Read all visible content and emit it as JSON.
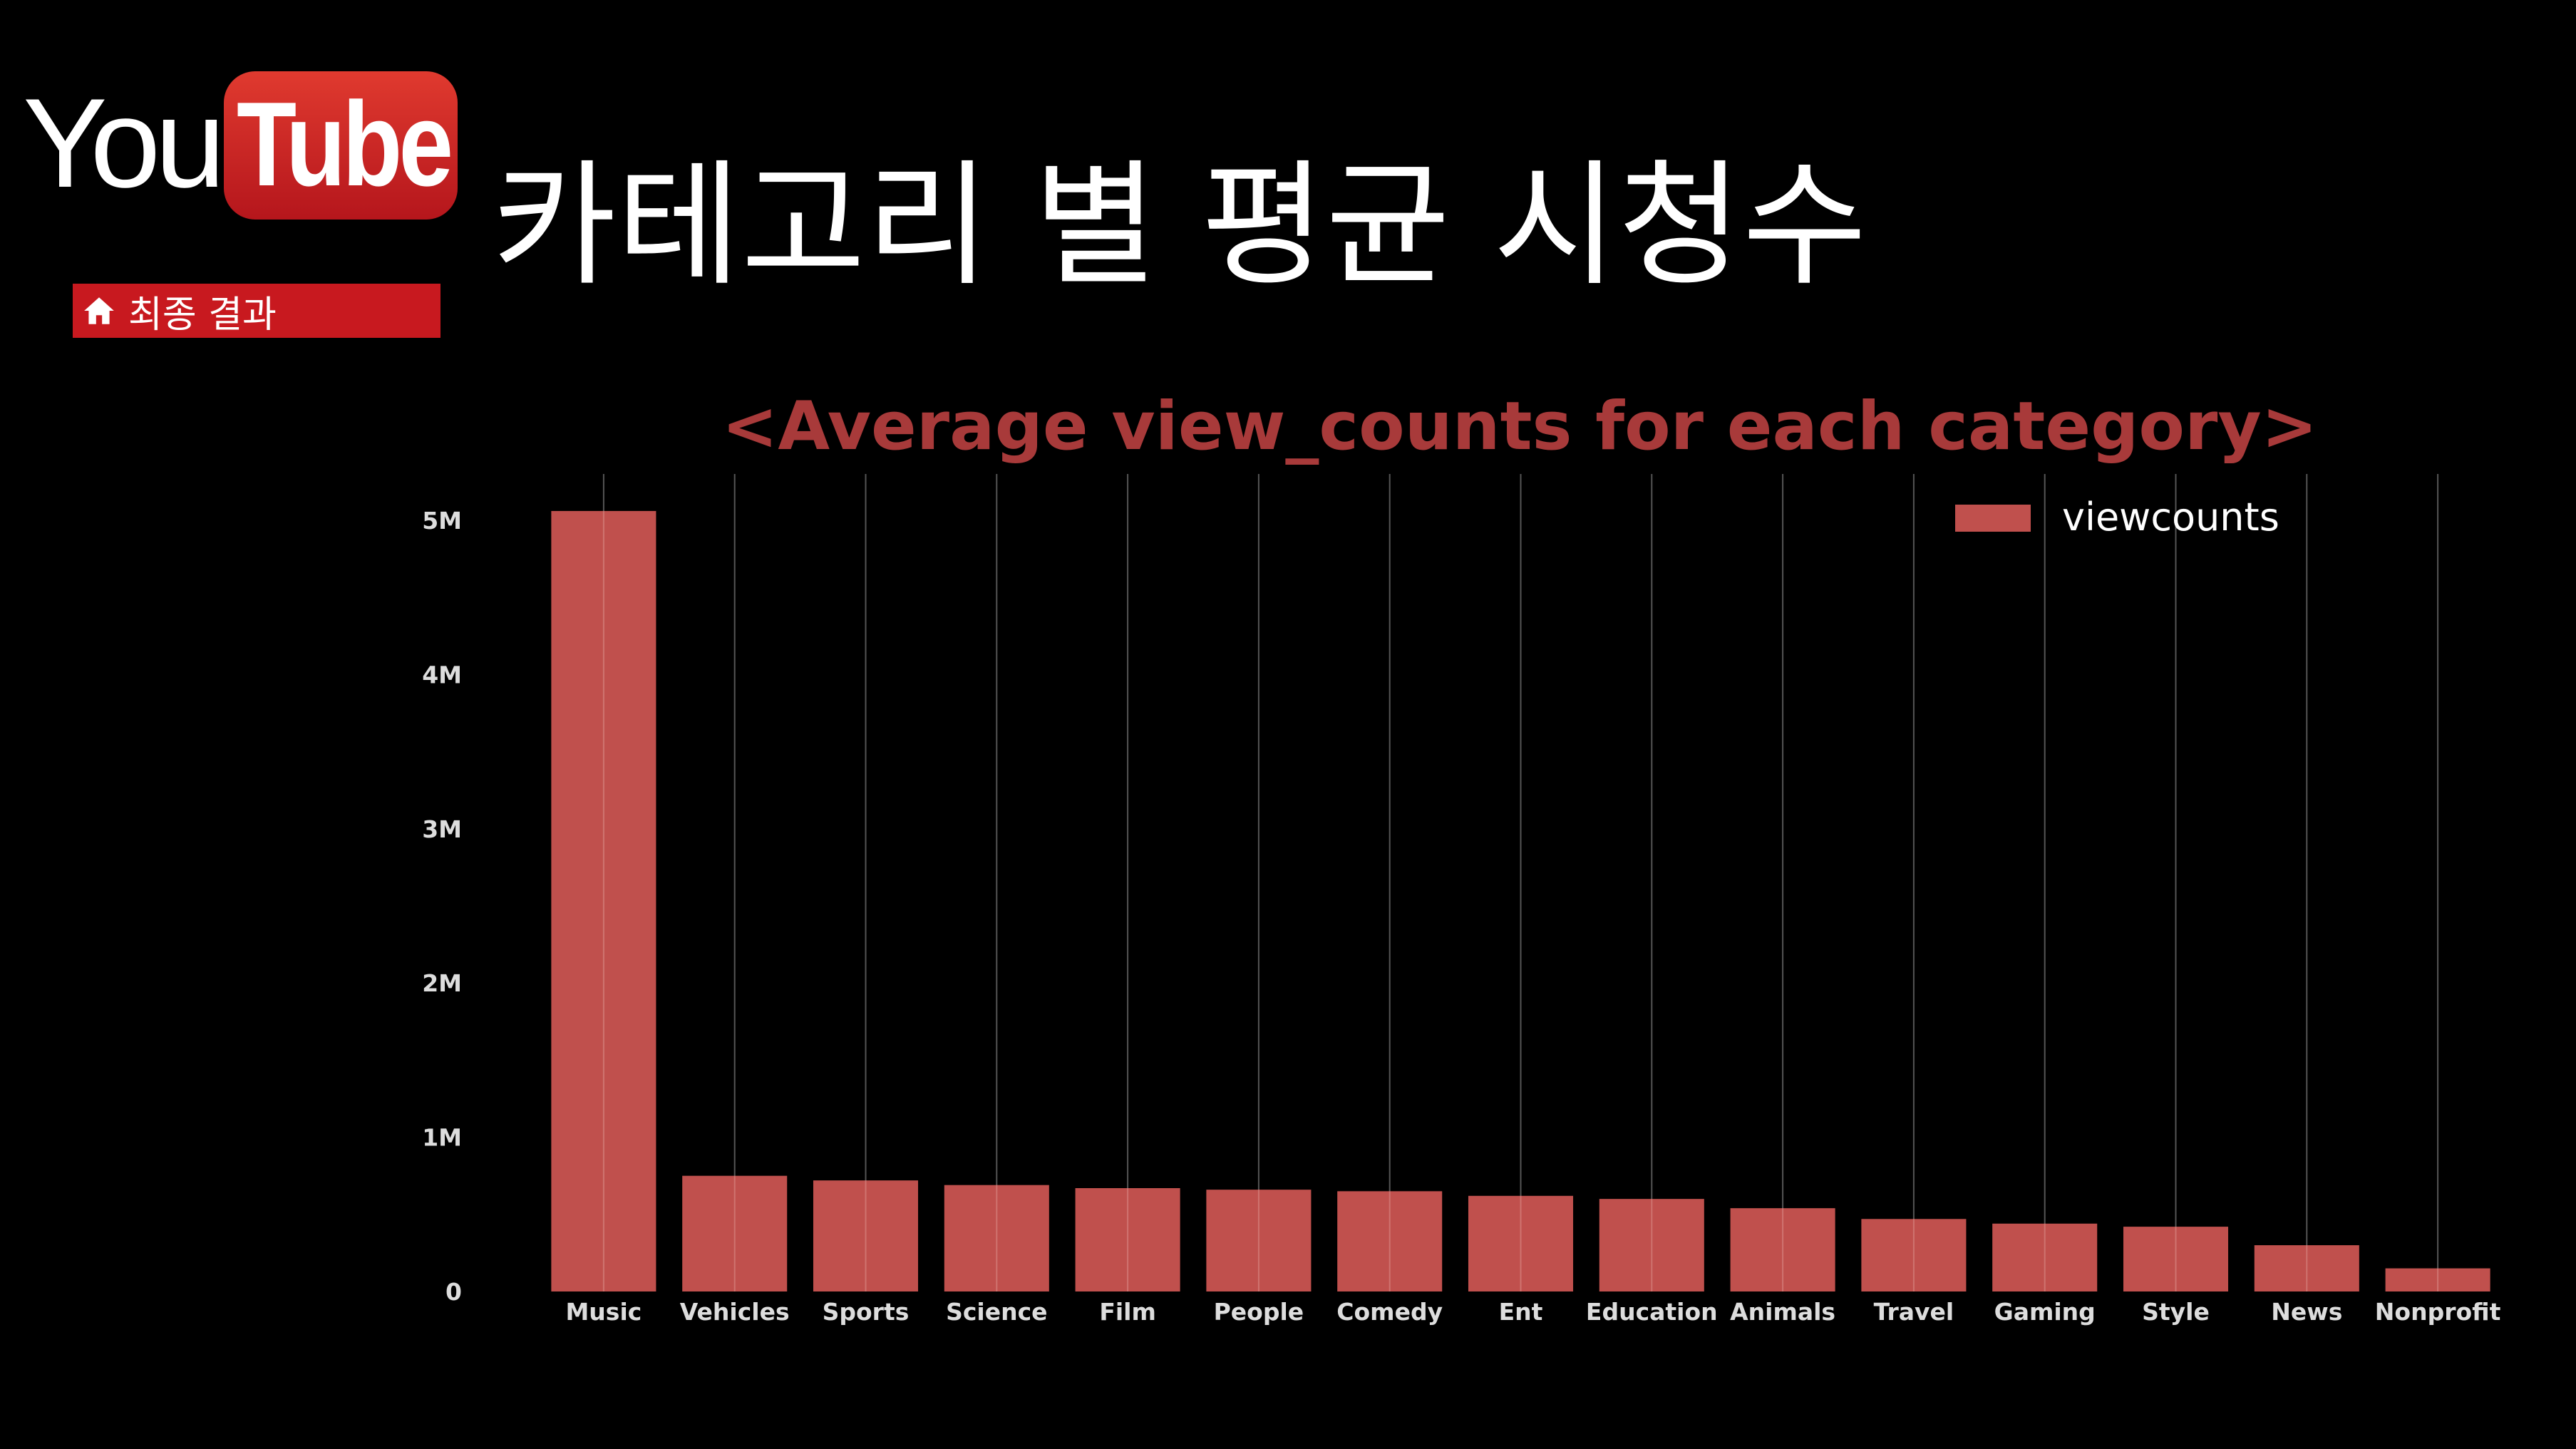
{
  "header": {
    "logo_you": "You",
    "logo_tube": "Tube",
    "title": "카테고리 별 평균 시청수",
    "badge_label": "최종 결과",
    "badge_icon": "home-icon"
  },
  "colors": {
    "background": "#000000",
    "bar": "#c0504d",
    "title": "#a83a3a",
    "badge": "#c8191f",
    "text": "#ffffff"
  },
  "chart_data": {
    "type": "bar",
    "title": "<Average view_counts for each category>",
    "categories": [
      "Music",
      "Vehicles",
      "Sports",
      "Science",
      "Film",
      "People",
      "Comedy",
      "Ent",
      "Education",
      "Animals",
      "Travel",
      "Gaming",
      "Style",
      "News",
      "Nonprofit"
    ],
    "series": [
      {
        "name": "viewcounts",
        "values": [
          5060000,
          750000,
          720000,
          690000,
          670000,
          660000,
          650000,
          620000,
          600000,
          540000,
          470000,
          440000,
          420000,
          300000,
          150000
        ]
      }
    ],
    "ylim": [
      0,
      5300000
    ],
    "yticks": [
      0,
      1000000,
      2000000,
      3000000,
      4000000,
      5000000
    ],
    "ytick_labels": [
      "0",
      "1M",
      "2M",
      "3M",
      "4M",
      "5M"
    ],
    "xlabel": "",
    "ylabel": "",
    "grid": "vertical",
    "legend": "top-right"
  }
}
